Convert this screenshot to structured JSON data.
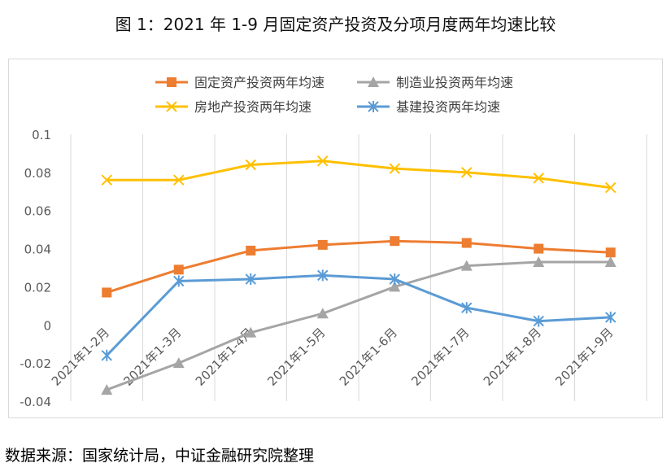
{
  "figure": {
    "title": "图 1：2021 年 1-9 月固定资产投资及分项月度两年均速比较",
    "source": "数据来源：国家统计局，中证金融研究院整理"
  },
  "chart_data": {
    "type": "line",
    "title": "",
    "xlabel": "",
    "ylabel": "",
    "categories": [
      "2021年1-2月",
      "2021年1-3月",
      "2021年1-4月",
      "2021年1-5月",
      "2021年1-6月",
      "2021年1-7月",
      "2021年1-8月",
      "2021年1-9月"
    ],
    "ylim": [
      -0.04,
      0.1
    ],
    "yticks": [
      "-0.04",
      "-0.02",
      "0",
      "0.02",
      "0.04",
      "0.06",
      "0.08",
      "0.1"
    ],
    "grid": "vertical",
    "legend_position": "top",
    "series": [
      {
        "name": "固定资产投资两年均速",
        "color": "#ED7D31",
        "marker": "square",
        "values": [
          0.017,
          0.029,
          0.039,
          0.042,
          0.044,
          0.043,
          0.04,
          0.038
        ]
      },
      {
        "name": "制造业投资两年均速",
        "color": "#A5A5A5",
        "marker": "triangle",
        "values": [
          -0.034,
          -0.02,
          -0.004,
          0.006,
          0.02,
          0.031,
          0.033,
          0.033
        ]
      },
      {
        "name": "房地产投资两年均速",
        "color": "#FFC000",
        "marker": "x",
        "values": [
          0.076,
          0.076,
          0.084,
          0.086,
          0.082,
          0.08,
          0.077,
          0.072
        ]
      },
      {
        "name": "基建投资两年均速",
        "color": "#5B9BD5",
        "marker": "star",
        "values": [
          -0.016,
          0.023,
          0.024,
          0.026,
          0.024,
          0.009,
          0.002,
          0.004
        ]
      }
    ]
  }
}
